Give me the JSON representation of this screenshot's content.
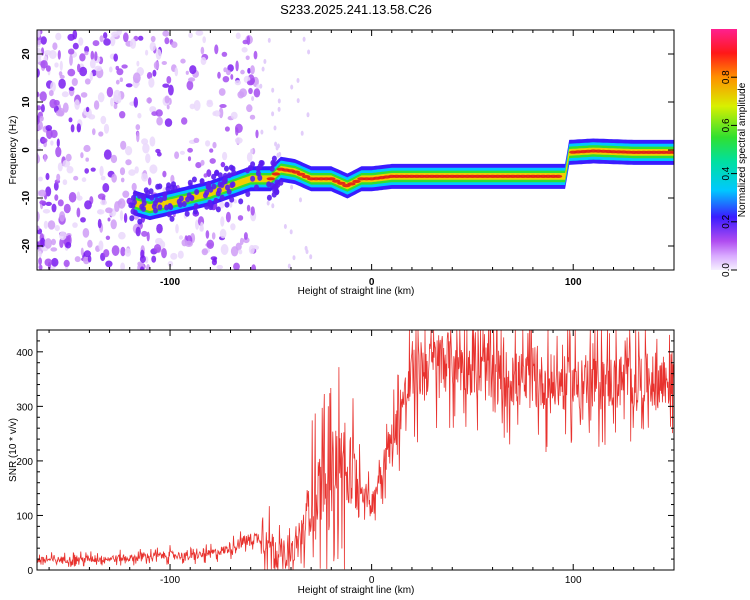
{
  "title": "S233.2025.241.13.58.C26",
  "chart_data": [
    {
      "type": "heatmap",
      "xlabel": "Height of straight line (km)",
      "ylabel": "Frequency (Hz)",
      "xlim": [
        -166,
        150
      ],
      "ylim": [
        -25,
        25
      ],
      "x_ticks": [
        -100,
        0,
        100
      ],
      "x_tick_labels": [
        "-100",
        "0",
        "100"
      ],
      "y_ticks": [
        -20,
        -10,
        0,
        10,
        20
      ],
      "y_tick_labels": [
        "-20",
        "-10",
        "0",
        "10",
        "20"
      ],
      "colorbar": {
        "label": "Normalized spectral amplitude",
        "range": [
          0,
          1
        ],
        "ticks": [
          0,
          0.2,
          0.4,
          0.6,
          0.8
        ],
        "tick_labels": [
          "0.0",
          "0.2",
          "0.4",
          "0.6",
          "0.8"
        ]
      },
      "ridge": [
        {
          "x": -118,
          "y": -11
        },
        {
          "x": -110,
          "y": -12
        },
        {
          "x": -100,
          "y": -11
        },
        {
          "x": -90,
          "y": -10
        },
        {
          "x": -80,
          "y": -9
        },
        {
          "x": -70,
          "y": -7.5
        },
        {
          "x": -60,
          "y": -6
        },
        {
          "x": -50,
          "y": -6
        },
        {
          "x": -45,
          "y": -4
        },
        {
          "x": -38,
          "y": -4.5
        },
        {
          "x": -30,
          "y": -6
        },
        {
          "x": -20,
          "y": -6
        },
        {
          "x": -12,
          "y": -7.5
        },
        {
          "x": -5,
          "y": -6
        },
        {
          "x": 0,
          "y": -6
        },
        {
          "x": 10,
          "y": -5.5
        },
        {
          "x": 30,
          "y": -5.5
        },
        {
          "x": 60,
          "y": -5.5
        },
        {
          "x": 96,
          "y": -5.5
        },
        {
          "x": 98,
          "y": -0.5
        },
        {
          "x": 110,
          "y": -0.2
        },
        {
          "x": 130,
          "y": -0.5
        },
        {
          "x": 150,
          "y": -0.5
        }
      ]
    },
    {
      "type": "line",
      "xlabel": "Height of straight line (km)",
      "ylabel": "SNR (10 * v/v)",
      "xlim": [
        -166,
        150
      ],
      "ylim": [
        0,
        440
      ],
      "x_ticks": [
        -100,
        0,
        100
      ],
      "x_tick_labels": [
        "-100",
        "0",
        "100"
      ],
      "y_ticks": [
        0,
        100,
        200,
        300,
        400
      ],
      "y_tick_labels": [
        "0",
        "100",
        "200",
        "300",
        "400"
      ],
      "series": [
        {
          "name": "SNR",
          "color": "#e8322e",
          "trend_x": [
            -166,
            -140,
            -120,
            -110,
            -100,
            -90,
            -80,
            -70,
            -62,
            -55,
            -48,
            -40,
            -35,
            -30,
            -25,
            -20,
            -15,
            -10,
            -5,
            0,
            5,
            10,
            15,
            20,
            30,
            40,
            50,
            60,
            80,
            100,
            120,
            150
          ],
          "trend_y": [
            18,
            20,
            22,
            25,
            28,
            25,
            30,
            40,
            55,
            60,
            40,
            25,
            60,
            130,
            160,
            180,
            195,
            175,
            150,
            120,
            190,
            240,
            300,
            350,
            380,
            385,
            375,
            355,
            345,
            340,
            345,
            350
          ]
        }
      ]
    }
  ]
}
